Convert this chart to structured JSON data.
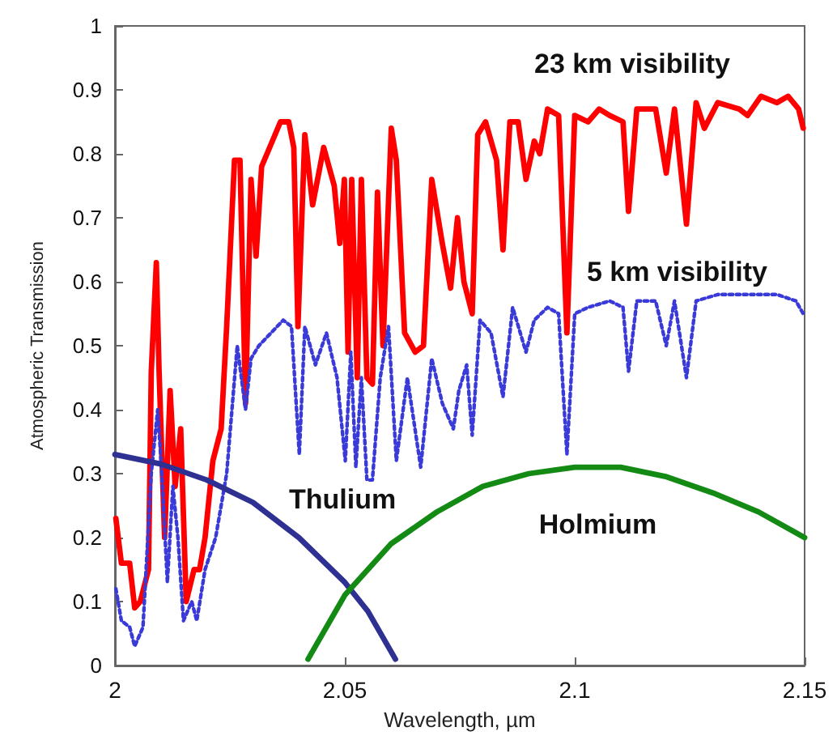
{
  "chart_data": {
    "type": "line",
    "xlabel": "Wavelength, µm",
    "ylabel": "Atmospheric Transmission",
    "xlim": [
      2,
      2.15
    ],
    "xticks": [
      2,
      2.05,
      2.1,
      2.15
    ],
    "ylim": [
      0,
      1
    ],
    "yticks": [
      0,
      0.1,
      0.2,
      0.3,
      0.4,
      0.5,
      0.6,
      0.7,
      0.8,
      0.9,
      1
    ],
    "grid": false,
    "legend": false,
    "marker": "none",
    "series": [
      {
        "name": "23 km visibility",
        "color": "#ff0000",
        "line_style": "solid",
        "x": [
          2.0002,
          2.0014,
          2.0032,
          2.0043,
          2.0055,
          2.0073,
          2.0079,
          2.009,
          2.0096,
          2.0108,
          2.012,
          2.0131,
          2.0143,
          2.0155,
          2.0172,
          2.0184,
          2.0196,
          2.0213,
          2.0231,
          2.0243,
          2.026,
          2.0272,
          2.0284,
          2.0296,
          2.0307,
          2.0319,
          2.036,
          2.0378,
          2.0389,
          2.0398,
          2.0413,
          2.043,
          2.0454,
          2.0477,
          2.0489,
          2.0499,
          2.0507,
          2.0515,
          2.0527,
          2.0536,
          2.0548,
          2.056,
          2.0571,
          2.0583,
          2.0601,
          2.0612,
          2.063,
          2.0653,
          2.0671,
          2.0689,
          2.0712,
          2.073,
          2.0745,
          2.0759,
          2.0777,
          2.0789,
          2.0806,
          2.083,
          2.0844,
          2.0859,
          2.0877,
          2.0894,
          2.0912,
          2.0924,
          2.0941,
          2.0965,
          2.0983,
          2.1,
          2.1029,
          2.1053,
          2.1076,
          2.1105,
          2.1117,
          2.1135,
          2.1176,
          2.1199,
          2.1217,
          2.1243,
          2.1264,
          2.1282,
          2.1311,
          2.1358,
          2.1376,
          2.1405,
          2.144,
          2.1464,
          2.1487,
          2.1497
        ],
        "values": [
          0.23,
          0.16,
          0.16,
          0.09,
          0.1,
          0.15,
          0.46,
          0.63,
          0.46,
          0.2,
          0.43,
          0.28,
          0.37,
          0.1,
          0.15,
          0.15,
          0.2,
          0.32,
          0.37,
          0.53,
          0.79,
          0.79,
          0.41,
          0.76,
          0.64,
          0.78,
          0.85,
          0.85,
          0.81,
          0.53,
          0.83,
          0.72,
          0.81,
          0.75,
          0.66,
          0.76,
          0.49,
          0.76,
          0.45,
          0.76,
          0.45,
          0.44,
          0.74,
          0.5,
          0.84,
          0.79,
          0.52,
          0.49,
          0.5,
          0.76,
          0.66,
          0.59,
          0.7,
          0.6,
          0.55,
          0.83,
          0.85,
          0.79,
          0.65,
          0.85,
          0.85,
          0.76,
          0.82,
          0.8,
          0.87,
          0.86,
          0.52,
          0.86,
          0.85,
          0.87,
          0.86,
          0.85,
          0.71,
          0.87,
          0.87,
          0.77,
          0.87,
          0.69,
          0.88,
          0.84,
          0.88,
          0.87,
          0.86,
          0.89,
          0.88,
          0.89,
          0.87,
          0.84
        ]
      },
      {
        "name": "5 km visibility",
        "color": "#3a3ad8",
        "line_style": "dotted",
        "x": [
          2.0002,
          2.0014,
          2.0032,
          2.0043,
          2.0061,
          2.0079,
          2.0093,
          2.0102,
          2.0114,
          2.0126,
          2.0137,
          2.0149,
          2.0167,
          2.0178,
          2.0196,
          2.0219,
          2.0243,
          2.0266,
          2.0284,
          2.0296,
          2.0313,
          2.0366,
          2.0384,
          2.0401,
          2.0413,
          2.0436,
          2.046,
          2.0483,
          2.0501,
          2.0513,
          2.0524,
          2.0536,
          2.0548,
          2.056,
          2.0577,
          2.0595,
          2.0612,
          2.0636,
          2.0665,
          2.0689,
          2.0712,
          2.0736,
          2.0748,
          2.0765,
          2.0777,
          2.0794,
          2.0818,
          2.0844,
          2.0865,
          2.0894,
          2.0912,
          2.0941,
          2.0965,
          2.0983,
          2.1,
          2.1029,
          2.1076,
          2.1105,
          2.1117,
          2.1135,
          2.1176,
          2.1199,
          2.1217,
          2.1243,
          2.1264,
          2.1311,
          2.1393,
          2.144,
          2.1481,
          2.1497
        ],
        "values": [
          0.12,
          0.07,
          0.06,
          0.03,
          0.06,
          0.3,
          0.4,
          0.3,
          0.13,
          0.28,
          0.2,
          0.07,
          0.1,
          0.07,
          0.15,
          0.2,
          0.3,
          0.5,
          0.4,
          0.48,
          0.5,
          0.54,
          0.53,
          0.33,
          0.53,
          0.47,
          0.52,
          0.45,
          0.32,
          0.49,
          0.31,
          0.45,
          0.29,
          0.29,
          0.45,
          0.53,
          0.32,
          0.45,
          0.31,
          0.48,
          0.41,
          0.37,
          0.43,
          0.47,
          0.36,
          0.54,
          0.52,
          0.42,
          0.56,
          0.49,
          0.54,
          0.56,
          0.55,
          0.33,
          0.55,
          0.56,
          0.57,
          0.56,
          0.46,
          0.57,
          0.57,
          0.5,
          0.57,
          0.45,
          0.57,
          0.58,
          0.58,
          0.58,
          0.57,
          0.55
        ]
      },
      {
        "name": "Thulium",
        "color": "#2e3192",
        "line_style": "solid",
        "x": [
          2,
          2.01,
          2.02,
          2.03,
          2.04,
          2.05,
          2.055,
          2.061
        ],
        "values": [
          0.33,
          0.315,
          0.29,
          0.255,
          0.2,
          0.13,
          0.085,
          0.01
        ]
      },
      {
        "name": "Holmium",
        "color": "#138a13",
        "line_style": "solid",
        "x": [
          2.042,
          2.05,
          2.06,
          2.07,
          2.08,
          2.09,
          2.1,
          2.11,
          2.12,
          2.13,
          2.14,
          2.15
        ],
        "values": [
          0.01,
          0.11,
          0.19,
          0.24,
          0.28,
          0.3,
          0.31,
          0.31,
          0.295,
          0.27,
          0.24,
          0.2
        ]
      }
    ]
  }
}
